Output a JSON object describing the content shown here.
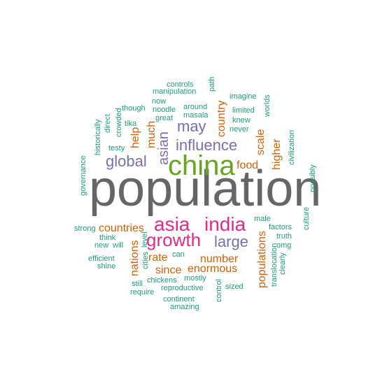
{
  "colors": {
    "teal": "#1b9e77",
    "orange": "#d95f02",
    "purple": "#7570b3",
    "magenta": "#e7298a",
    "green": "#66a61e",
    "gray": "#666666"
  },
  "words": [
    {
      "text": "population",
      "color": "#666666"
    },
    {
      "text": "china",
      "color": "#66a61e"
    },
    {
      "text": "asia",
      "color": "#e7298a"
    },
    {
      "text": "india",
      "color": "#e7298a"
    },
    {
      "text": "growth",
      "color": "#e7298a"
    },
    {
      "text": "influence",
      "color": "#7570b3"
    },
    {
      "text": "may",
      "color": "#7570b3"
    },
    {
      "text": "global",
      "color": "#7570b3"
    },
    {
      "text": "large",
      "color": "#7570b3"
    },
    {
      "text": "asian",
      "color": "#7570b3"
    },
    {
      "text": "countries",
      "color": "#d95f02"
    },
    {
      "text": "country",
      "color": "#d95f02"
    },
    {
      "text": "food",
      "color": "#d95f02"
    },
    {
      "text": "scale",
      "color": "#d95f02"
    },
    {
      "text": "higher",
      "color": "#d95f02"
    },
    {
      "text": "much",
      "color": "#d95f02"
    },
    {
      "text": "help",
      "color": "#d95f02"
    },
    {
      "text": "nations",
      "color": "#d95f02"
    },
    {
      "text": "rate",
      "color": "#d95f02"
    },
    {
      "text": "number",
      "color": "#d95f02"
    },
    {
      "text": "since",
      "color": "#d95f02"
    },
    {
      "text": "enormous",
      "color": "#d95f02"
    },
    {
      "text": "populations",
      "color": "#d95f02"
    },
    {
      "text": "controls",
      "color": "#1b9e77"
    },
    {
      "text": "path",
      "color": "#1b9e77"
    },
    {
      "text": "manipulation",
      "color": "#1b9e77"
    },
    {
      "text": "imagine",
      "color": "#1b9e77"
    },
    {
      "text": "now",
      "color": "#1b9e77"
    },
    {
      "text": "though",
      "color": "#1b9e77"
    },
    {
      "text": "around",
      "color": "#1b9e77"
    },
    {
      "text": "noodle",
      "color": "#1b9e77"
    },
    {
      "text": "limited",
      "color": "#1b9e77"
    },
    {
      "text": "worlds",
      "color": "#1b9e77"
    },
    {
      "text": "masala",
      "color": "#1b9e77"
    },
    {
      "text": "great",
      "color": "#1b9e77"
    },
    {
      "text": "knew",
      "color": "#1b9e77"
    },
    {
      "text": "never",
      "color": "#1b9e77"
    },
    {
      "text": "direct",
      "color": "#1b9e77"
    },
    {
      "text": "crowded",
      "color": "#1b9e77"
    },
    {
      "text": "tika",
      "color": "#1b9e77"
    },
    {
      "text": "historically",
      "color": "#1b9e77"
    },
    {
      "text": "testy",
      "color": "#1b9e77"
    },
    {
      "text": "civilization",
      "color": "#1b9e77"
    },
    {
      "text": "governance",
      "color": "#1b9e77"
    },
    {
      "text": "possibly",
      "color": "#1b9e77"
    },
    {
      "text": "male",
      "color": "#1b9e77"
    },
    {
      "text": "factors",
      "color": "#1b9e77"
    },
    {
      "text": "culture",
      "color": "#1b9e77"
    },
    {
      "text": "strong",
      "color": "#1b9e77"
    },
    {
      "text": "truth",
      "color": "#1b9e77"
    },
    {
      "text": "omg",
      "color": "#1b9e77"
    },
    {
      "text": "think",
      "color": "#1b9e77"
    },
    {
      "text": "level",
      "color": "#1b9e77"
    },
    {
      "text": "new",
      "color": "#1b9e77"
    },
    {
      "text": "will",
      "color": "#1b9e77"
    },
    {
      "text": "translocation",
      "color": "#1b9e77"
    },
    {
      "text": "clearly",
      "color": "#1b9e77"
    },
    {
      "text": "can",
      "color": "#1b9e77"
    },
    {
      "text": "efficient",
      "color": "#1b9e77"
    },
    {
      "text": "shine",
      "color": "#1b9e77"
    },
    {
      "text": "cities",
      "color": "#1b9e77"
    },
    {
      "text": "mostly",
      "color": "#1b9e77"
    },
    {
      "text": "still",
      "color": "#1b9e77"
    },
    {
      "text": "chickens",
      "color": "#1b9e77"
    },
    {
      "text": "sized",
      "color": "#1b9e77"
    },
    {
      "text": "require",
      "color": "#1b9e77"
    },
    {
      "text": "reproductive",
      "color": "#1b9e77"
    },
    {
      "text": "control",
      "color": "#1b9e77"
    },
    {
      "text": "continent",
      "color": "#1b9e77"
    },
    {
      "text": "amazing",
      "color": "#1b9e77"
    }
  ]
}
